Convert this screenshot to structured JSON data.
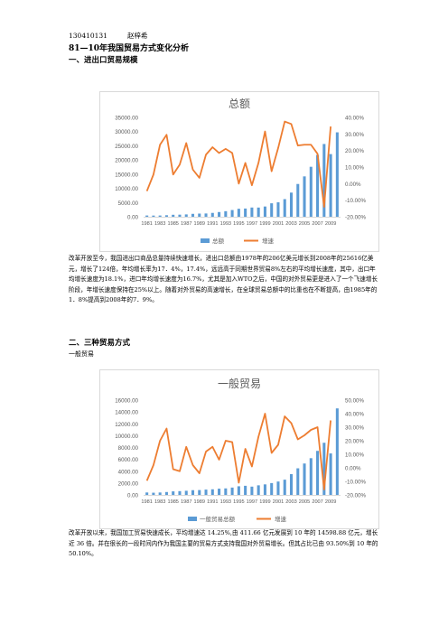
{
  "header": {
    "id": "130410131",
    "author": "赵梓希"
  },
  "title": "81—10年我国贸易方式变化分析",
  "section1": {
    "heading": "一、进出口贸易规模",
    "paragraph": "改革开放至今，我国进出口商品总量持续快速增长，进出口总额由1978年的206亿美元增长到2008年的25616亿美元，增长了124倍，年均增长率为17．4%，17.4%，远远高于同期世界贸易8%左右的平均增长速度，其中，出口年均增长速度为18.1%，进口年均增长速度为16.7%，尤其是加入WTO之后，中国的对外贸易更是进入了一个飞速增长阶段，年增长速度保持在25%以上。随着对外贸易的高速增长，在全球贸易总额中的比重也在不断提高，由1985年的1．8%提高到2008年的7．9%。"
  },
  "section2": {
    "heading": "二、三种贸易方式",
    "subheading": "一般贸易",
    "paragraph": "改革开放以来，我国加工贸易快速成长，平均增速达 14.25%,由 411.66 亿元发展到 10 年的 14598.88 亿元，增长近 36 倍。并在很长的一段时间内作为我国主要的贸易方式支持我国对外贸易增长。但其占比已由 93.50%到 10 年的 50.10%。"
  },
  "chart_data": [
    {
      "type": "bar+line",
      "title": "总额",
      "categories": [
        "1981",
        "1982",
        "1983",
        "1984",
        "1985",
        "1986",
        "1987",
        "1988",
        "1989",
        "1990",
        "1991",
        "1992",
        "1993",
        "1994",
        "1995",
        "1996",
        "1997",
        "1998",
        "1999",
        "2000",
        "2001",
        "2002",
        "2003",
        "2004",
        "2005",
        "2006",
        "2007",
        "2008",
        "2009",
        "2010"
      ],
      "x_tick_labels": [
        "1981",
        "1983",
        "1985",
        "1987",
        "1989",
        "1991",
        "1993",
        "1995",
        "1997",
        "1999",
        "2001",
        "2003",
        "2005",
        "2007",
        "2009"
      ],
      "y_left_ticks": [
        "35000.00",
        "30000.00",
        "25000.00",
        "20000.00",
        "15000.00",
        "10000.00",
        "5000.00",
        "0.00"
      ],
      "y_left_range": [
        0,
        35000
      ],
      "y_right_ticks": [
        "40.00%",
        "30.00%",
        "20.00%",
        "10.00%",
        "0.00%",
        "-10.00%",
        "-20.00%"
      ],
      "y_right_range": [
        -20,
        40
      ],
      "series": [
        {
          "name": "总额",
          "axis": "left",
          "color": "#5b9bd5",
          "values": [
            440,
            416,
            436,
            535,
            696,
            739,
            827,
            1028,
            1117,
            1154,
            1357,
            1656,
            1958,
            2366,
            2809,
            2899,
            3252,
            3240,
            3607,
            4743,
            5097,
            6208,
            8510,
            11546,
            14219,
            17604,
            21766,
            25633,
            22075,
            29740
          ]
        },
        {
          "name": "增速",
          "axis": "right",
          "color": "#ed7d31",
          "values": [
            -4.5,
            5.5,
            23.5,
            29.5,
            5.5,
            11.5,
            24.5,
            8.5,
            3.5,
            17.5,
            22,
            18.5,
            21,
            18.5,
            0,
            12.5,
            -1,
            12.5,
            31.5,
            7.5,
            21.5,
            37.5,
            36,
            23,
            23.5,
            23.5,
            18,
            -14,
            34.5,
            null
          ]
        }
      ],
      "legend_position": "bottom",
      "grid": false
    },
    {
      "type": "bar+line",
      "title": "一般贸易",
      "categories": [
        "1981",
        "1982",
        "1983",
        "1984",
        "1985",
        "1986",
        "1987",
        "1988",
        "1989",
        "1990",
        "1991",
        "1992",
        "1993",
        "1994",
        "1995",
        "1996",
        "1997",
        "1998",
        "1999",
        "2000",
        "2001",
        "2002",
        "2003",
        "2004",
        "2005",
        "2006",
        "2007",
        "2008",
        "2009",
        "2010"
      ],
      "x_tick_labels": [
        "1981",
        "1983",
        "1985",
        "1987",
        "1989",
        "1991",
        "1993",
        "1995",
        "1997",
        "1999",
        "2001",
        "2003",
        "2005",
        "2007",
        "2009"
      ],
      "y_left_ticks": [
        "16000.00",
        "14000.00",
        "12000.00",
        "10000.00",
        "8000.00",
        "6000.00",
        "4000.00",
        "2000.00",
        "0.00"
      ],
      "y_left_range": [
        0,
        16000
      ],
      "y_right_ticks": [
        "50.00%",
        "40.00%",
        "30.00%",
        "20.00%",
        "10.00%",
        "0.00%",
        "-10.00%",
        "-20.00%"
      ],
      "y_right_range": [
        -20,
        50
      ],
      "series": [
        {
          "name": "一般贸易总额",
          "axis": "left",
          "color": "#5b9bd5",
          "values": [
            412,
            372,
            410,
            490,
            600,
            640,
            700,
            800,
            820,
            900,
            950,
            1050,
            1100,
            1240,
            1460,
            1540,
            1400,
            1620,
            1780,
            2000,
            2260,
            2570,
            3510,
            4490,
            5300,
            6200,
            7430,
            8800,
            7000,
            14599
          ]
        },
        {
          "name": "增速",
          "axis": "right",
          "color": "#ed7d31",
          "values": [
            -9.5,
            2,
            20,
            29,
            -1,
            -2.5,
            15.5,
            2,
            -4,
            12,
            15.5,
            6,
            20,
            19,
            -11,
            14,
            1,
            23,
            40,
            11,
            17,
            38,
            33,
            21,
            24,
            28,
            30,
            -16,
            35,
            null
          ]
        }
      ],
      "legend_position": "bottom",
      "grid": false
    }
  ]
}
